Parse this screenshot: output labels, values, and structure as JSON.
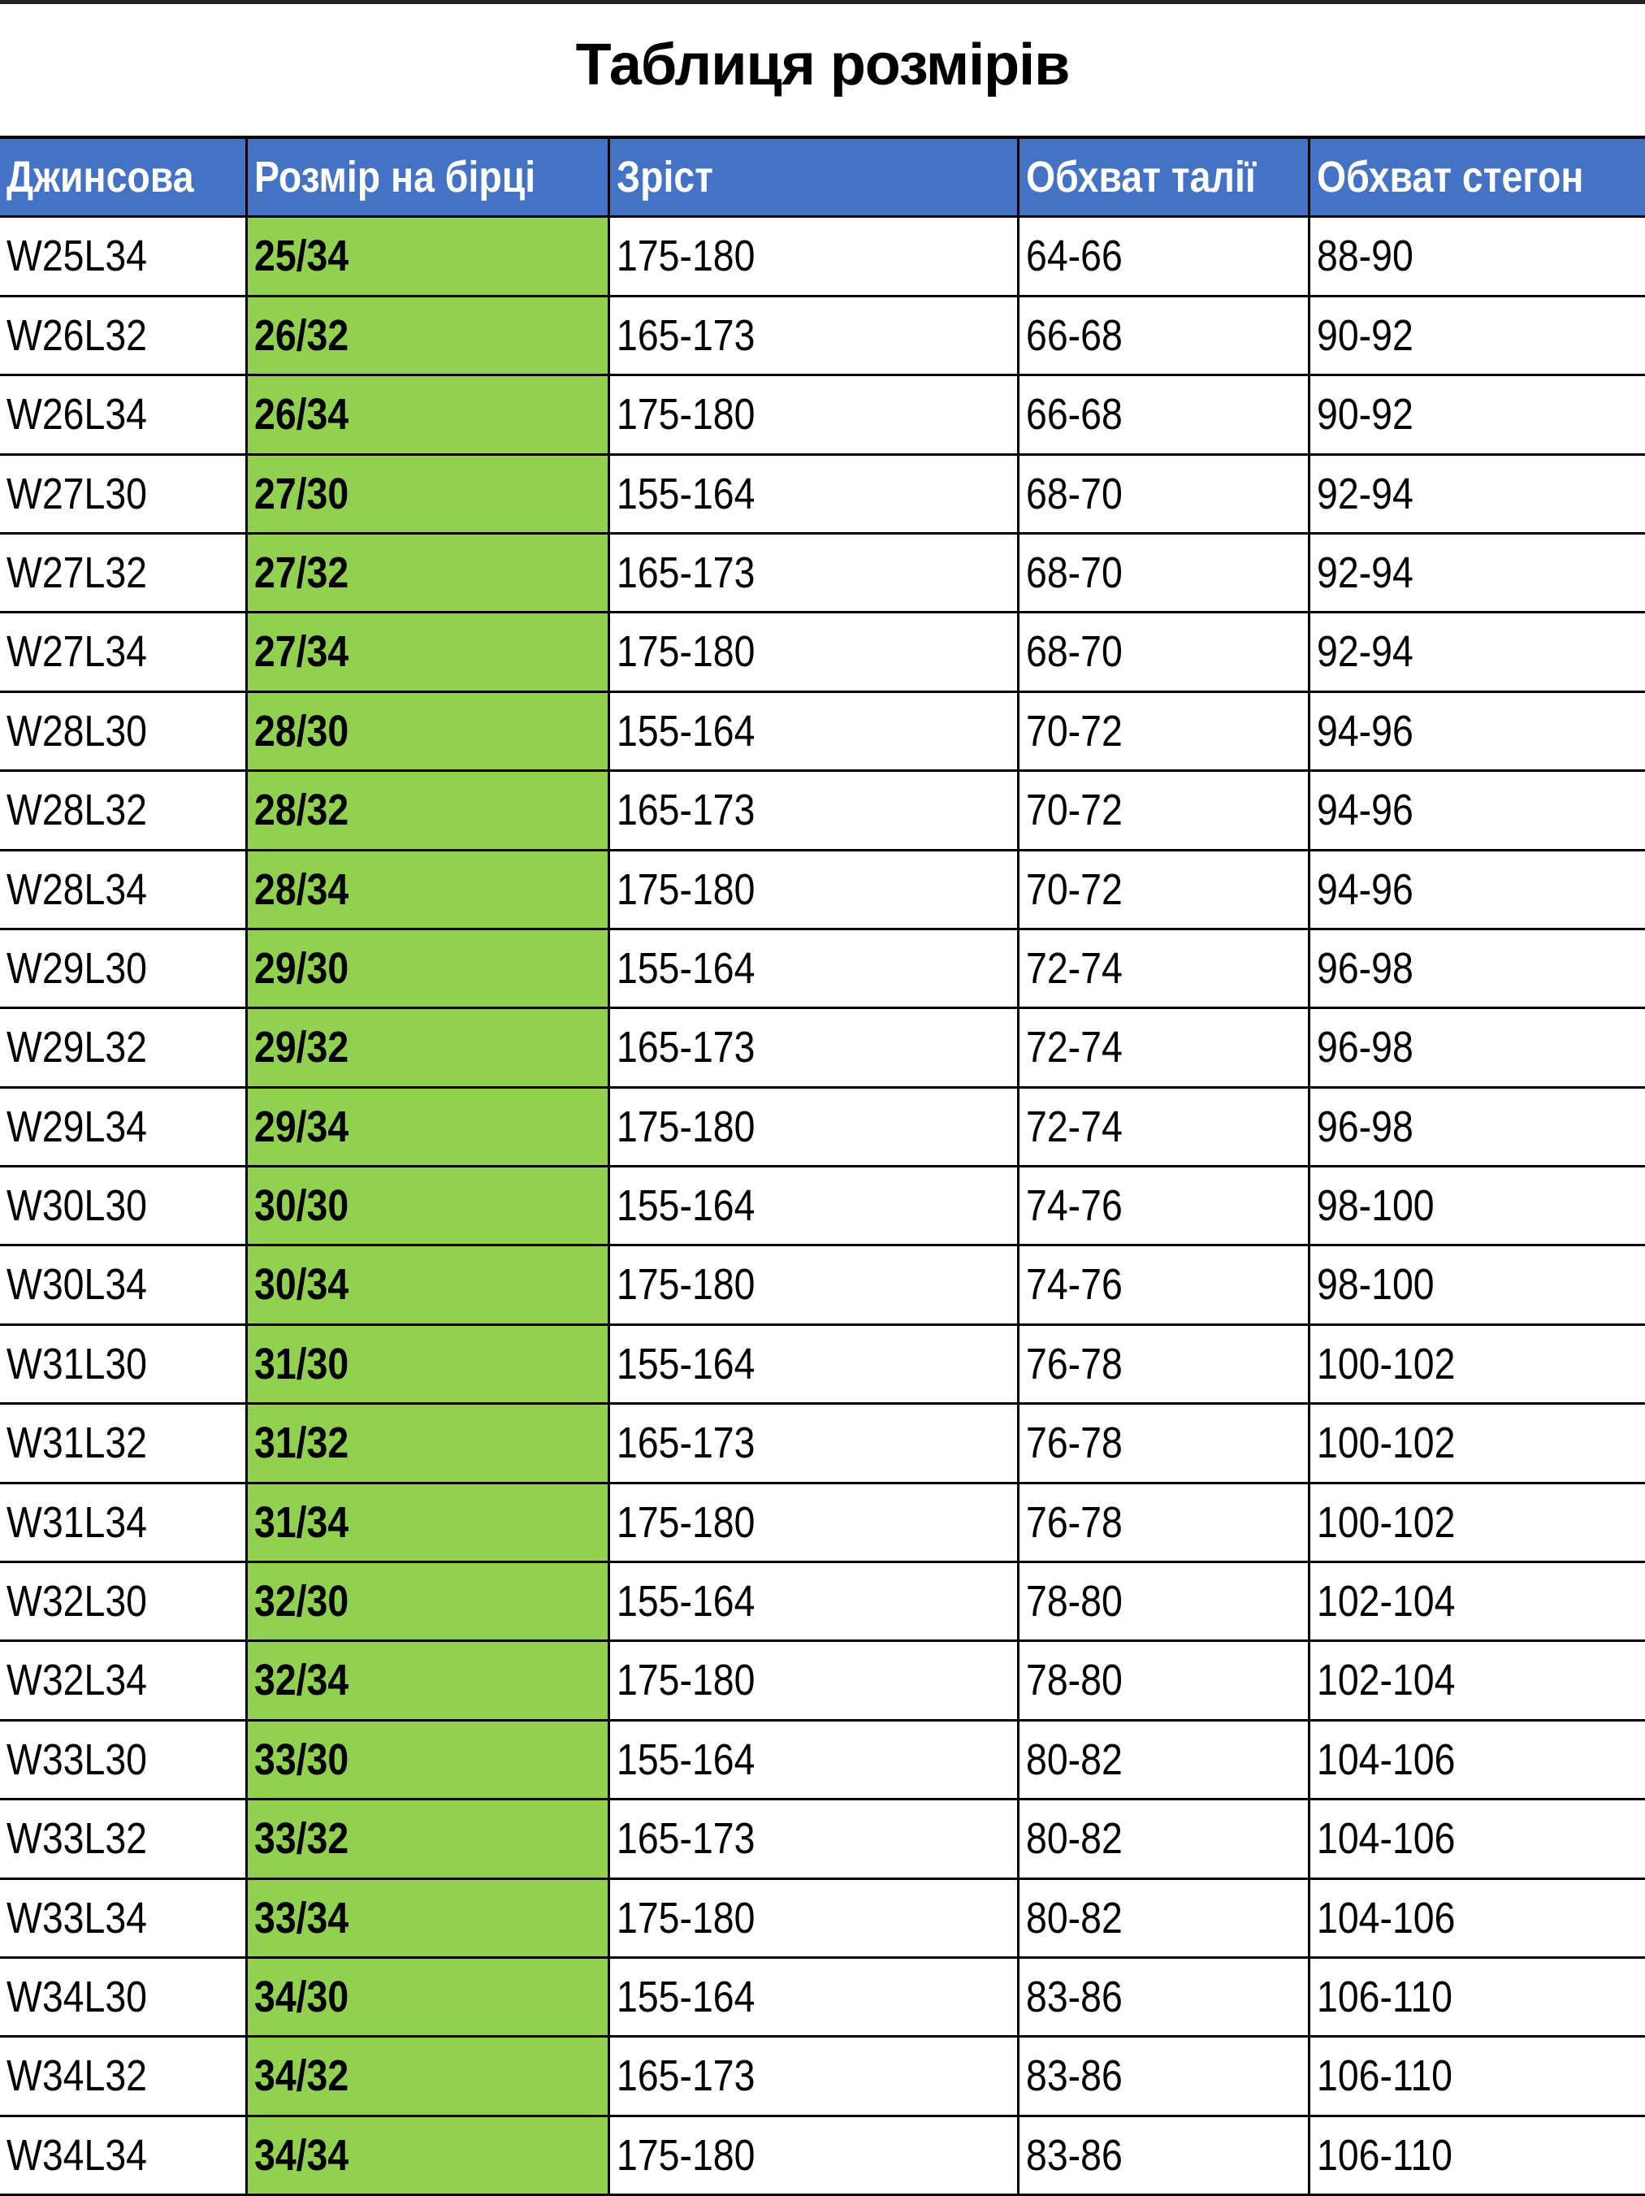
{
  "title": "Таблиця розмірів",
  "colors": {
    "header_bg": "#4472C4",
    "tag_size_bg": "#92D050"
  },
  "columns": [
    "Джинсова",
    "Розмір на бірці",
    "Зріст",
    "Обхват талії",
    "Обхват стегон"
  ],
  "rows": [
    [
      "W25L34",
      "25/34",
      "175-180",
      "64-66",
      "88-90"
    ],
    [
      "W26L32",
      "26/32",
      "165-173",
      "66-68",
      "90-92"
    ],
    [
      "W26L34",
      "26/34",
      "175-180",
      "66-68",
      "90-92"
    ],
    [
      "W27L30",
      "27/30",
      "155-164",
      "68-70",
      "92-94"
    ],
    [
      "W27L32",
      "27/32",
      "165-173",
      "68-70",
      "92-94"
    ],
    [
      "W27L34",
      "27/34",
      "175-180",
      "68-70",
      "92-94"
    ],
    [
      "W28L30",
      "28/30",
      "155-164",
      "70-72",
      "94-96"
    ],
    [
      "W28L32",
      "28/32",
      "165-173",
      "70-72",
      "94-96"
    ],
    [
      "W28L34",
      "28/34",
      "175-180",
      "70-72",
      "94-96"
    ],
    [
      "W29L30",
      "29/30",
      "155-164",
      "72-74",
      "96-98"
    ],
    [
      "W29L32",
      "29/32",
      "165-173",
      "72-74",
      "96-98"
    ],
    [
      "W29L34",
      "29/34",
      "175-180",
      "72-74",
      "96-98"
    ],
    [
      "W30L30",
      "30/30",
      "155-164",
      "74-76",
      "98-100"
    ],
    [
      "W30L34",
      "30/34",
      "175-180",
      "74-76",
      "98-100"
    ],
    [
      "W31L30",
      "31/30",
      "155-164",
      "76-78",
      "100-102"
    ],
    [
      "W31L32",
      "31/32",
      "165-173",
      "76-78",
      "100-102"
    ],
    [
      "W31L34",
      "31/34",
      "175-180",
      "76-78",
      "100-102"
    ],
    [
      "W32L30",
      "32/30",
      "155-164",
      "78-80",
      "102-104"
    ],
    [
      "W32L34",
      "32/34",
      "175-180",
      "78-80",
      "102-104"
    ],
    [
      "W33L30",
      "33/30",
      "155-164",
      "80-82",
      "104-106"
    ],
    [
      "W33L32",
      "33/32",
      "165-173",
      "80-82",
      "104-106"
    ],
    [
      "W33L34",
      "33/34",
      "175-180",
      "80-82",
      "104-106"
    ],
    [
      "W34L30",
      "34/30",
      "155-164",
      "83-86",
      "106-110"
    ],
    [
      "W34L32",
      "34/32",
      "165-173",
      "83-86",
      "106-110"
    ],
    [
      "W34L34",
      "34/34",
      "175-180",
      "83-86",
      "106-110"
    ]
  ]
}
